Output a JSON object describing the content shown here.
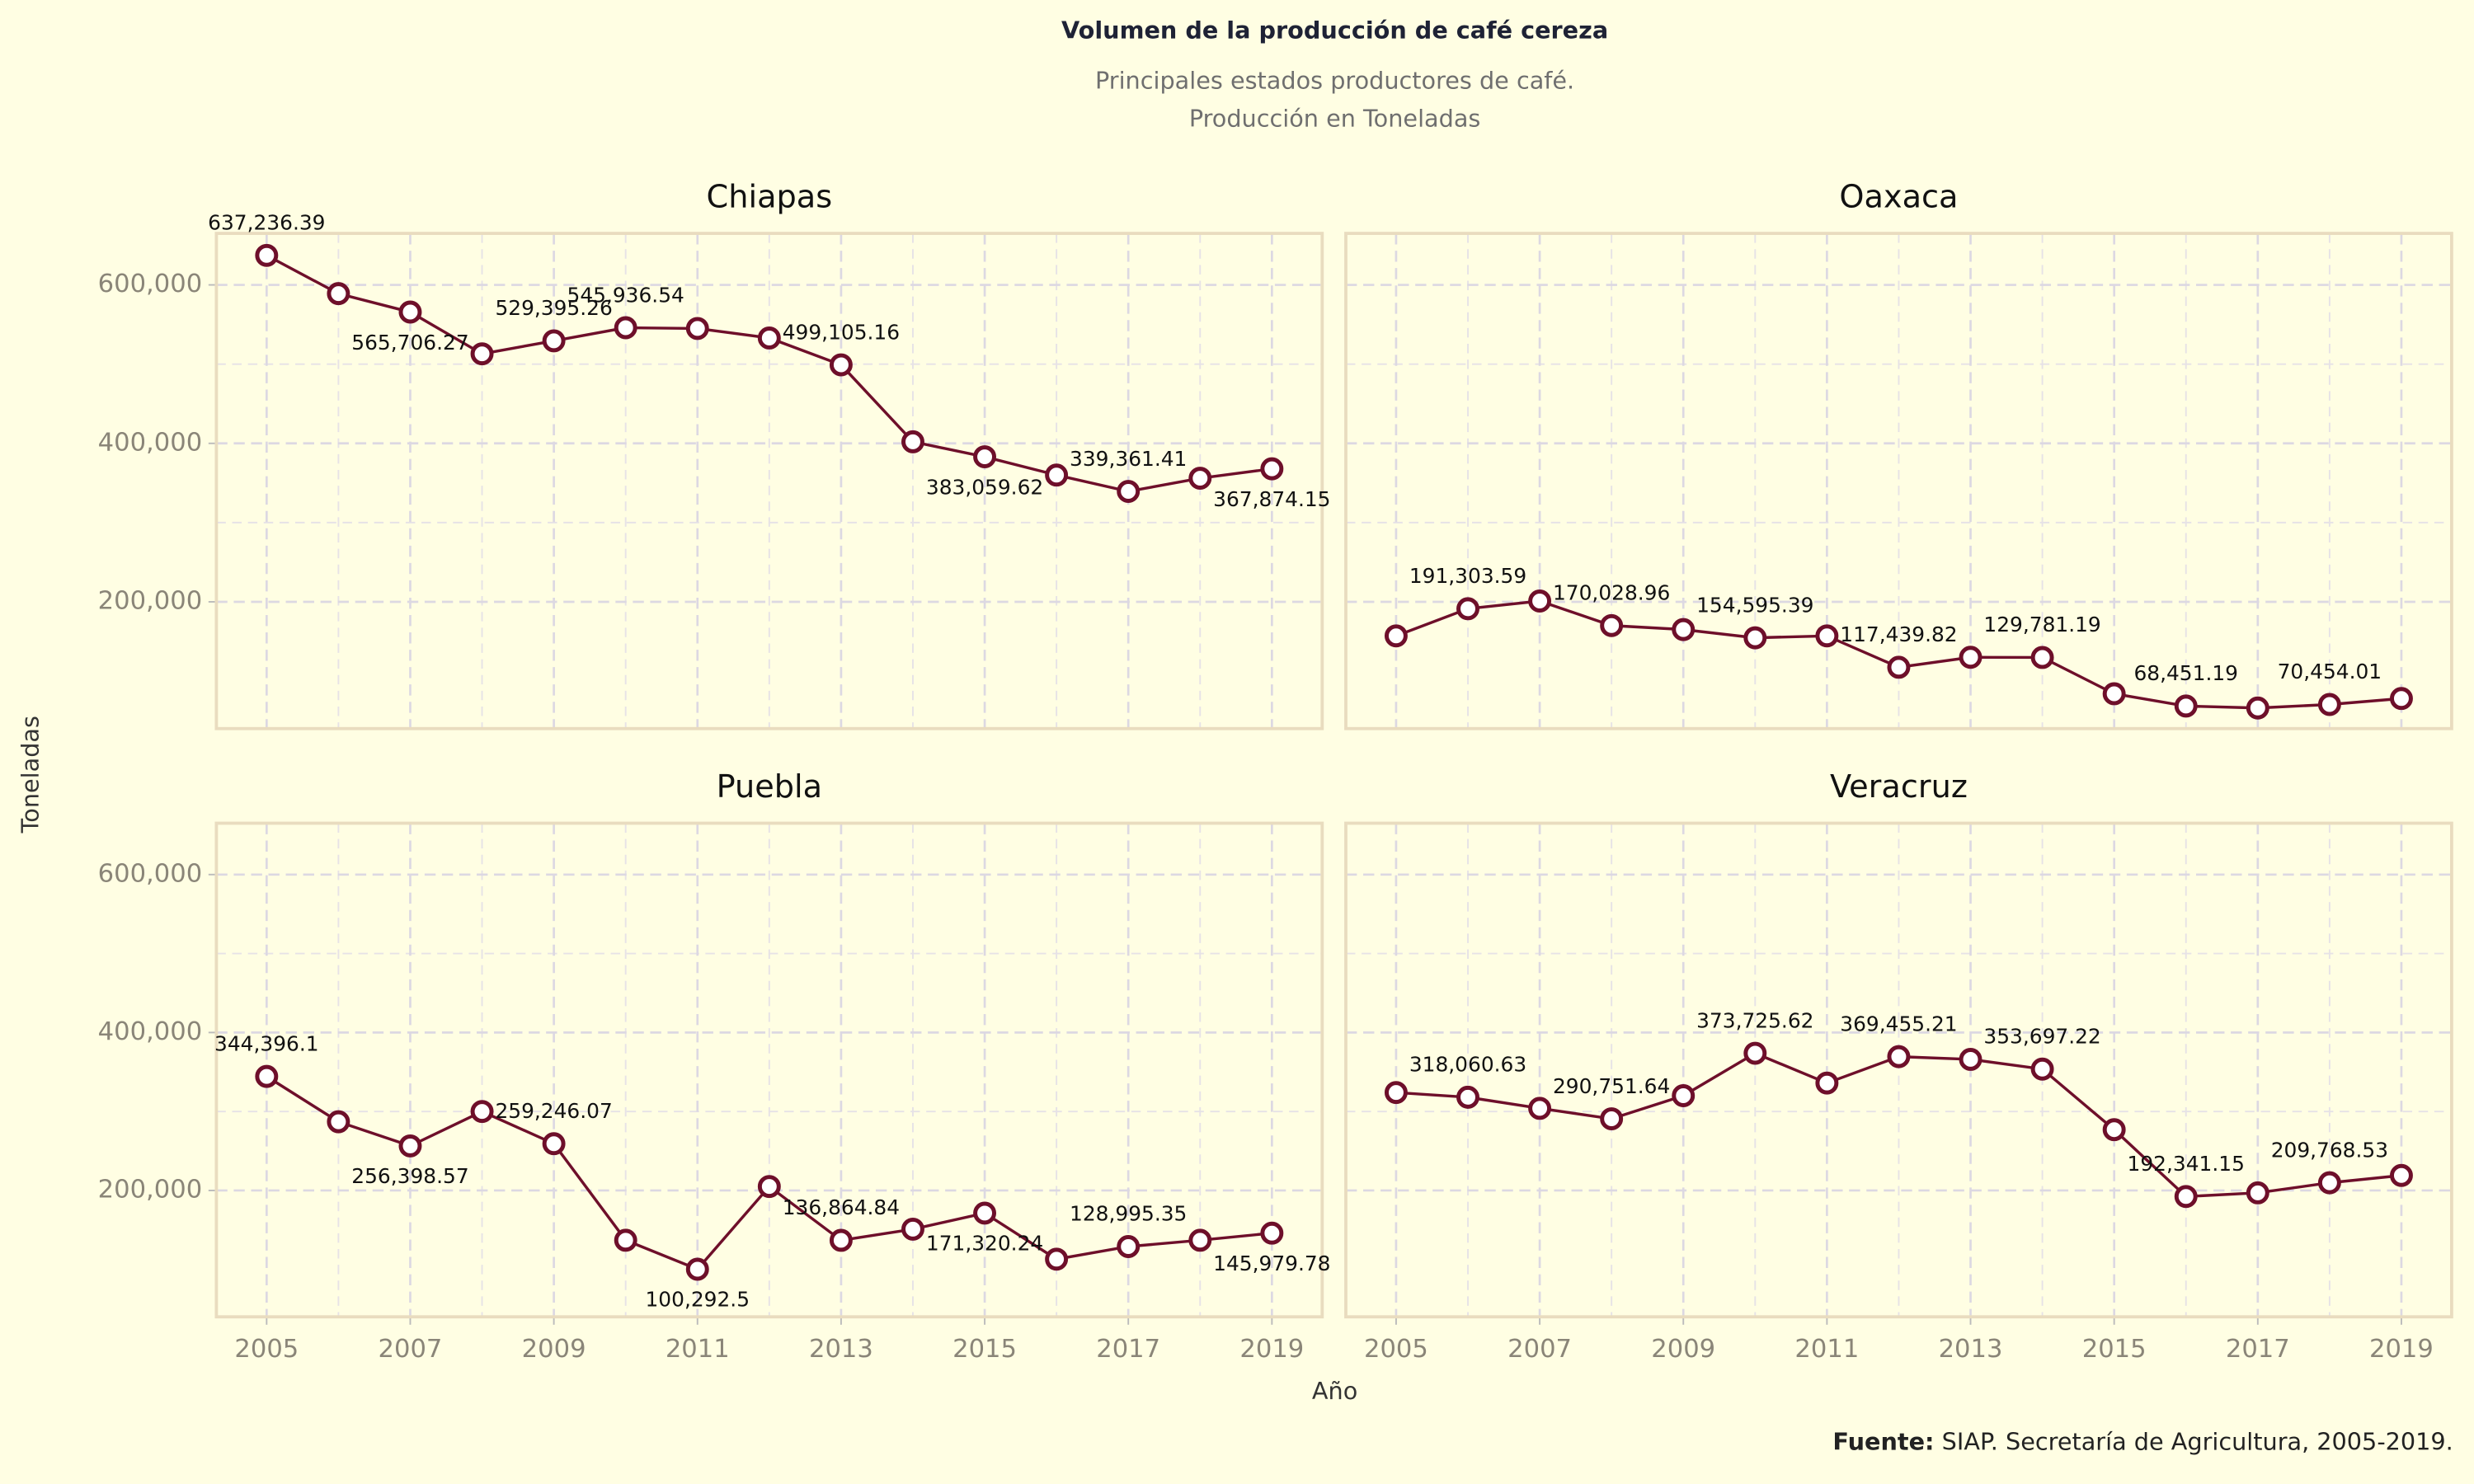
{
  "title": "Volumen de la producción de café cereza",
  "subtitle": [
    "Principales estados productores de café.",
    "Producción en Toneladas"
  ],
  "x_label": "Año",
  "y_label": "Toneladas",
  "source": {
    "bold": "Fuente:",
    "text": "SIAP. Secretaría de Agricultura, 2005-2019."
  },
  "chart_data": [
    {
      "type": "line",
      "title": "Chiapas",
      "color": "#6e0f2a",
      "grid": true,
      "x": [
        2005,
        2006,
        2007,
        2008,
        2009,
        2010,
        2011,
        2012,
        2013,
        2014,
        2015,
        2016,
        2017,
        2018,
        2019
      ],
      "values": [
        637236.39,
        589000,
        565706.27,
        513000,
        529395.26,
        545936.54,
        545000,
        533000,
        499105.16,
        402000,
        383059.62,
        360000,
        339361.41,
        356000,
        367874.15
      ],
      "value_labels": [
        "637,236.39",
        null,
        "565,706.27",
        null,
        "529,395.26",
        "545,936.54",
        null,
        null,
        "499,105.16",
        null,
        "383,059.62",
        null,
        "339,361.41",
        null,
        "367,874.15"
      ],
      "xlim": [
        2004.3,
        2019.7
      ],
      "ylim": [
        40000,
        665000
      ],
      "xticks": [
        2005,
        2007,
        2009,
        2011,
        2013,
        2015,
        2017,
        2019
      ],
      "yticks": [
        {
          "value": 200000,
          "label": "200,000"
        },
        {
          "value": 400000,
          "label": "400,000"
        },
        {
          "value": 600000,
          "label": "600,000"
        }
      ]
    },
    {
      "type": "line",
      "title": "Oaxaca",
      "color": "#6e0f2a",
      "grid": true,
      "x": [
        2005,
        2006,
        2007,
        2008,
        2009,
        2010,
        2011,
        2012,
        2013,
        2014,
        2015,
        2016,
        2017,
        2018,
        2019
      ],
      "values": [
        157000,
        191303.59,
        201000,
        170028.96,
        165000,
        154595.39,
        157000,
        117439.82,
        130000,
        129781.19,
        84000,
        68451.19,
        66000,
        70454.01,
        78000
      ],
      "value_labels": [
        null,
        "191,303.59",
        null,
        "170,028.96",
        null,
        "154,595.39",
        null,
        "117,439.82",
        null,
        "129,781.19",
        null,
        "68,451.19",
        null,
        "70,454.01",
        null
      ],
      "xlim": [
        2004.3,
        2019.7
      ],
      "ylim": [
        40000,
        665000
      ],
      "xticks": [
        2005,
        2007,
        2009,
        2011,
        2013,
        2015,
        2017,
        2019
      ],
      "yticks": [
        {
          "value": 200000,
          "label": "200,000"
        },
        {
          "value": 400000,
          "label": "400,000"
        },
        {
          "value": 600000,
          "label": "600,000"
        }
      ]
    },
    {
      "type": "line",
      "title": "Puebla",
      "color": "#6e0f2a",
      "grid": true,
      "x": [
        2005,
        2006,
        2007,
        2008,
        2009,
        2010,
        2011,
        2012,
        2013,
        2014,
        2015,
        2016,
        2017,
        2018,
        2019
      ],
      "values": [
        344396.1,
        287000,
        256398.57,
        300000,
        259246.07,
        137000,
        100292.5,
        205000,
        136864.84,
        151000,
        171320.24,
        113000,
        128995.35,
        137000,
        145979.78
      ],
      "value_labels": [
        "344,396.1",
        null,
        "256,398.57",
        null,
        "259,246.07",
        null,
        "100,292.5",
        null,
        "136,864.84",
        null,
        "171,320.24",
        null,
        "128,995.35",
        null,
        "145,979.78"
      ],
      "xlim": [
        2004.3,
        2019.7
      ],
      "ylim": [
        40000,
        665000
      ],
      "xticks": [
        2005,
        2007,
        2009,
        2011,
        2013,
        2015,
        2017,
        2019
      ],
      "yticks": [
        {
          "value": 200000,
          "label": "200,000"
        },
        {
          "value": 400000,
          "label": "400,000"
        },
        {
          "value": 600000,
          "label": "600,000"
        }
      ]
    },
    {
      "type": "line",
      "title": "Veracruz",
      "color": "#6e0f2a",
      "grid": true,
      "x": [
        2005,
        2006,
        2007,
        2008,
        2009,
        2010,
        2011,
        2012,
        2013,
        2014,
        2015,
        2016,
        2017,
        2018,
        2019
      ],
      "values": [
        324000,
        318060.63,
        304000,
        290751.64,
        320000,
        373725.62,
        336000,
        369455.21,
        366000,
        353697.22,
        277000,
        192341.15,
        197000,
        209768.53,
        219000
      ],
      "value_labels": [
        null,
        "318,060.63",
        null,
        "290,751.64",
        null,
        "373,725.62",
        null,
        "369,455.21",
        null,
        "353,697.22",
        null,
        "192,341.15",
        null,
        "209,768.53",
        null
      ],
      "xlim": [
        2004.3,
        2019.7
      ],
      "ylim": [
        40000,
        665000
      ],
      "xticks": [
        2005,
        2007,
        2009,
        2011,
        2013,
        2015,
        2017,
        2019
      ],
      "yticks": [
        {
          "value": 200000,
          "label": "200,000"
        },
        {
          "value": 400000,
          "label": "400,000"
        },
        {
          "value": 600000,
          "label": "600,000"
        }
      ]
    }
  ]
}
